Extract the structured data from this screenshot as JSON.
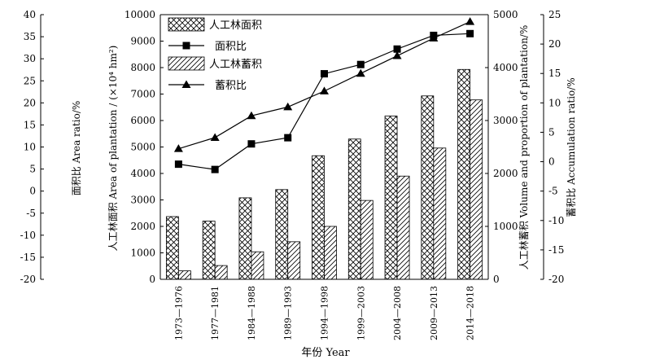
{
  "chart_data": {
    "type": "bar",
    "categories": [
      "1973—1976",
      "1977—1981",
      "1984—1988",
      "1989—1993",
      "1994—1998",
      "1999—2003",
      "2004—2008",
      "2009—2013",
      "2014—2018"
    ],
    "series": [
      {
        "name": "人工林面积",
        "type": "bar",
        "axis": "left_inner",
        "pattern": "crosshatch",
        "values": [
          2370,
          2200,
          3080,
          3390,
          4670,
          5300,
          6170,
          6930,
          7930
        ]
      },
      {
        "name": "蓄积比",
        "type": "line",
        "marker": "triangle",
        "axis": "right_outer",
        "values": [
          2.2,
          4.1,
          7.8,
          9.3,
          12.0,
          15.0,
          18.0,
          21.0,
          23.8
        ]
      },
      {
        "name": "面积比",
        "type": "line",
        "marker": "square",
        "axis": "left_outer",
        "values": [
          6.1,
          4.9,
          10.7,
          12.1,
          26.6,
          28.7,
          32.2,
          35.3,
          35.7
        ]
      },
      {
        "name": "人工林蓄积",
        "type": "bar",
        "axis": "right_inner",
        "pattern": "diagonal",
        "values": [
          160,
          260,
          520,
          710,
          1000,
          1490,
          1950,
          2480,
          3390
        ]
      }
    ],
    "axes": {
      "left_outer": {
        "label": "面积比 Area ratio/%",
        "min": -20,
        "max": 40,
        "ticks": [
          -20,
          -15,
          -10,
          -5,
          0,
          5,
          10,
          15,
          20,
          25,
          30,
          35,
          40
        ]
      },
      "left_inner": {
        "label": "人工林面积 Area of plantation / (×10⁴ hm²)",
        "min": 0,
        "max": 10000,
        "ticks": [
          0,
          1000,
          2000,
          3000,
          4000,
          5000,
          6000,
          7000,
          8000,
          9000,
          10000
        ]
      },
      "right_inner": {
        "label": "人工林蓄积 Volume and proportion of plantation/%",
        "min": 0,
        "max": 5000,
        "ticks": [
          0,
          1000,
          2000,
          3000,
          4000,
          5000
        ]
      },
      "right_outer": {
        "label": "蓄积比 Accumulation ratio/%",
        "min": -20,
        "max": 25,
        "ticks": [
          -20,
          -15,
          -10,
          -5,
          0,
          5,
          10,
          15,
          20,
          25
        ]
      }
    },
    "xlabel": "年份 Year",
    "legend_order": [
      "人工林面积",
      "面积比",
      "人工林蓄积",
      "蓄积比"
    ],
    "legend_position": "top-left",
    "grid": false
  }
}
